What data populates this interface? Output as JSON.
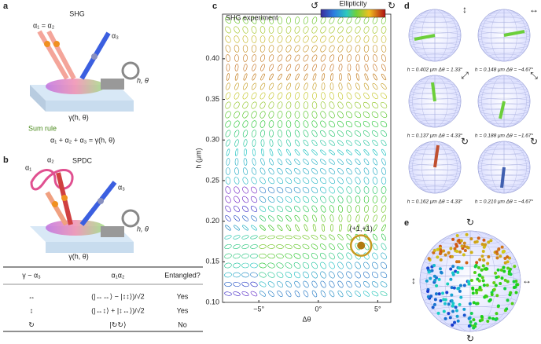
{
  "panel_a": {
    "label": "a",
    "title": "SHG",
    "alpha_in": "α₁ = α₂",
    "alpha_out": "α₃",
    "knob": "h, θ",
    "gamma": "γ(h, θ)",
    "rule_title": "Sum rule",
    "rule": "α₁ + α₂ + α₃ = γ(h, θ)"
  },
  "panel_b": {
    "label": "b",
    "alpha1": "α₁",
    "alpha2": "α₂",
    "title": "SPDC",
    "alpha3": "α₃",
    "knob": "h, θ",
    "gamma": "γ(h, θ)"
  },
  "table": {
    "header": [
      "γ − α₃",
      "α₁α₂",
      "Entangled?"
    ],
    "rows": [
      [
        "↔",
        "(|↔↔⟩ − |↕↕⟩)/√2",
        "Yes"
      ],
      [
        "↕",
        "(|↔↕⟩ + |↕↔⟩)/√2",
        "Yes"
      ],
      [
        "↻",
        "|↻↻⟩",
        "No"
      ]
    ]
  },
  "chart_data": {
    "type": "ellipse-field",
    "label": "c",
    "title": "SHG experiment",
    "colorbar_label": "Ellipticity",
    "colorbar_ends": [
      "↺",
      "↻"
    ],
    "xlabel": "Δθ",
    "ylabel": "h (μm)",
    "xlim": [
      -8.05,
      6.1
    ],
    "ylim": [
      0.1,
      0.455
    ],
    "xticks": [
      {
        "value": -5,
        "label": "−5°"
      },
      {
        "value": 0,
        "label": "0°"
      },
      {
        "value": 5,
        "label": "5°"
      }
    ],
    "yticks": [
      {
        "value": 0.1,
        "label": "0.10"
      },
      {
        "value": 0.15,
        "label": "0.15"
      },
      {
        "value": 0.2,
        "label": "0.20"
      },
      {
        "value": 0.25,
        "label": "0.25"
      },
      {
        "value": 0.3,
        "label": "0.30"
      },
      {
        "value": 0.35,
        "label": "0.35"
      },
      {
        "value": 0.4,
        "label": "0.40"
      }
    ],
    "annotation": {
      "text": "(+1,+1)",
      "x": 3.6,
      "y": 0.17
    }
  },
  "panel_d": {
    "label": "d",
    "spheres": [
      {
        "symbol": "↕",
        "caption": "h = 0.402 μm Δθ = 1.33°"
      },
      {
        "symbol": "↔",
        "caption": "h = 0.148 μm Δθ = −4.67°"
      },
      {
        "symbol": "⤢",
        "caption": "h = 0.137 μm Δθ = 4.33°"
      },
      {
        "symbol": "⤡",
        "caption": "h = 0.188 μm Δθ = −1.67°"
      },
      {
        "symbol": "↻",
        "caption": "h = 0.162 μm Δθ = 4.33°"
      },
      {
        "symbol": "↻",
        "caption": "h = 0.210 μm Δθ = −4.67°"
      }
    ]
  },
  "panel_e": {
    "label": "e",
    "symbols": [
      "↻",
      "↕",
      "↔",
      "↻"
    ]
  }
}
